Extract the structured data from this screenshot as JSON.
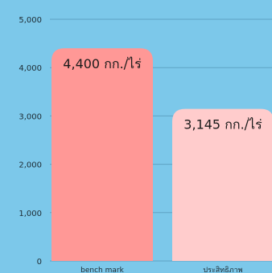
{
  "chart_data": {
    "type": "bar",
    "categories": [
      "bench mark",
      "ประสิทธิภาพ"
    ],
    "values": [
      4400,
      3145
    ],
    "data_labels": [
      "4,400 กก./ไร่",
      "3,145 กก./ไร่"
    ],
    "ylim": [
      0,
      5000
    ],
    "yticks": [
      0,
      1000,
      2000,
      3000,
      4000,
      5000
    ],
    "ytick_labels": [
      "0",
      "1,000",
      "2,000",
      "3,000",
      "4,000",
      "5,000"
    ],
    "grid": true,
    "colors": [
      "#ff9896",
      "#ffcccc"
    ],
    "background": "#7cc8ea"
  }
}
